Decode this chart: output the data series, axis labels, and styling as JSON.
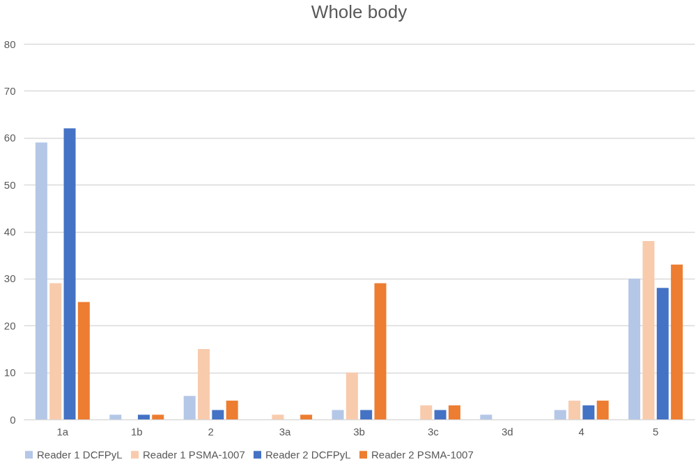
{
  "chart_data": {
    "type": "bar",
    "title": "Whole body",
    "categories": [
      "1a",
      "1b",
      "2",
      "3a",
      "3b",
      "3c",
      "3d",
      "4",
      "5"
    ],
    "series": [
      {
        "name": "Reader 1 DCFPyL",
        "color": "#b4c7e7",
        "values": [
          59,
          1,
          5,
          0,
          2,
          0,
          1,
          2,
          30
        ]
      },
      {
        "name": "Reader 1 PSMA-1007",
        "color": "#f8cbad",
        "values": [
          29,
          0,
          15,
          1,
          10,
          3,
          0,
          4,
          38
        ]
      },
      {
        "name": "Reader 2 DCFPyL",
        "color": "#4472c4",
        "values": [
          62,
          1,
          2,
          0,
          2,
          2,
          0,
          3,
          28
        ]
      },
      {
        "name": "Reader 2 PSMA-1007",
        "color": "#ed7d31",
        "values": [
          25,
          1,
          4,
          1,
          29,
          3,
          0,
          4,
          33
        ]
      }
    ],
    "ylim": [
      0,
      80
    ],
    "yticks": [
      0,
      10,
      20,
      30,
      40,
      50,
      60,
      70,
      80
    ],
    "grid": "y",
    "legend": "bottom"
  }
}
